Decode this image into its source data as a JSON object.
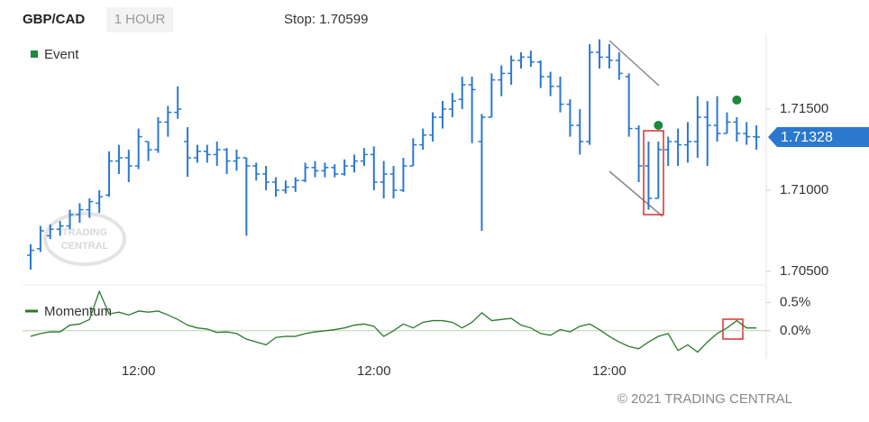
{
  "header": {
    "symbol": "GBP/CAD",
    "interval": "1 HOUR",
    "stop": "Stop: 1.70599"
  },
  "watermark": [
    "TRADING",
    "CENTRAL"
  ],
  "footer": "© 2021 TRADING CENTRAL",
  "chart_data": [
    {
      "type": "ohlc",
      "color": "#2b78cf",
      "categories": [
        null,
        null,
        null,
        null,
        null,
        null,
        null,
        null,
        null,
        null,
        null,
        "12:00",
        null,
        null,
        null,
        null,
        null,
        null,
        null,
        null,
        null,
        null,
        null,
        null,
        null,
        null,
        null,
        null,
        null,
        null,
        null,
        null,
        null,
        null,
        null,
        "12:00",
        null,
        null,
        null,
        null,
        null,
        null,
        null,
        null,
        null,
        null,
        null,
        null,
        null,
        null,
        null,
        null,
        null,
        null,
        null,
        null,
        null,
        null,
        null,
        "12:00",
        null,
        null,
        null,
        null,
        null,
        null,
        null,
        null,
        null,
        null,
        null,
        null,
        null,
        null,
        null
      ],
      "open": [
        1.706,
        1.7064,
        1.7072,
        1.7076,
        1.7078,
        1.7085,
        1.7088,
        1.7092,
        1.7097,
        1.7118,
        1.712,
        1.7115,
        1.713,
        1.7125,
        1.7142,
        1.7148,
        1.713,
        1.712,
        1.7124,
        1.7122,
        1.7125,
        1.7118,
        1.712,
        1.7115,
        1.711,
        1.7105,
        1.71,
        1.7102,
        1.7106,
        1.7114,
        1.7112,
        1.7114,
        1.711,
        1.7115,
        1.7118,
        1.7122,
        1.7105,
        1.711,
        1.71,
        1.7115,
        1.7128,
        1.7134,
        1.7145,
        1.715,
        1.7156,
        1.7165,
        1.713,
        1.7145,
        1.7168,
        1.7172,
        1.718,
        1.7182,
        1.7179,
        1.717,
        1.7164,
        1.7153,
        1.714,
        1.713,
        1.7185,
        1.7182,
        1.718,
        1.717,
        1.7138,
        1.7115,
        1.7095,
        1.7125,
        1.713,
        1.7128,
        1.713,
        1.7145,
        1.714,
        1.7135,
        1.7142,
        1.7135,
        1.7133
      ],
      "high": [
        1.70667,
        1.7078,
        1.7079,
        1.7081,
        1.7088,
        1.7092,
        1.7095,
        1.71,
        1.7124,
        1.7128,
        1.7125,
        1.7138,
        1.713,
        1.7145,
        1.7152,
        1.7164,
        1.71389,
        1.7128,
        1.7128,
        1.713,
        1.7126,
        1.7125,
        1.712,
        1.7117,
        1.7115,
        1.7108,
        1.7106,
        1.7108,
        1.7117,
        1.7118,
        1.7117,
        1.7116,
        1.7119,
        1.7122,
        1.7126,
        1.7127,
        1.7118,
        1.7115,
        1.712,
        1.7132,
        1.7138,
        1.7148,
        1.7155,
        1.716,
        1.717,
        1.717,
        1.7147,
        1.7172,
        1.7177,
        1.7183,
        1.7185,
        1.7186,
        1.718,
        1.7173,
        1.717,
        1.7156,
        1.715,
        1.719,
        1.7193,
        1.719,
        1.7185,
        1.7172,
        1.714,
        1.713,
        1.713,
        1.7133,
        1.7138,
        1.7142,
        1.7158,
        1.7155,
        1.7158,
        1.7148,
        1.7145,
        1.7142,
        1.714
      ],
      "low": [
        1.70511,
        1.7062,
        1.707,
        1.7072,
        1.7076,
        1.708,
        1.7083,
        1.7086,
        1.7096,
        1.711,
        1.7105,
        1.7113,
        1.7118,
        1.7123,
        1.7133,
        1.7144,
        1.71083,
        1.7117,
        1.7117,
        1.7115,
        1.711,
        1.7112,
        1.7072,
        1.7106,
        1.71,
        1.7096,
        1.7098,
        1.7099,
        1.7105,
        1.7108,
        1.7108,
        1.7108,
        1.7109,
        1.7111,
        1.7115,
        1.71,
        1.7095,
        1.7095,
        1.7099,
        1.7115,
        1.7125,
        1.713,
        1.7138,
        1.7145,
        1.715,
        1.7129,
        1.7075,
        1.7145,
        1.7158,
        1.7165,
        1.7175,
        1.7176,
        1.7163,
        1.7158,
        1.7148,
        1.7133,
        1.7122,
        1.7128,
        1.7175,
        1.7175,
        1.7168,
        1.7133,
        1.7105,
        1.7088,
        1.7095,
        1.7115,
        1.7115,
        1.7117,
        1.712,
        1.7115,
        1.713,
        1.7135,
        1.713,
        1.7128,
        1.7125
      ],
      "close": [
        1.7063,
        1.7075,
        1.7076,
        1.7078,
        1.7085,
        1.7088,
        1.7093,
        1.7096,
        1.7118,
        1.712,
        1.7115,
        1.7133,
        1.7125,
        1.7142,
        1.7148,
        1.715,
        1.712,
        1.7124,
        1.7122,
        1.7125,
        1.7118,
        1.712,
        1.7115,
        1.711,
        1.7105,
        1.71,
        1.7102,
        1.7106,
        1.7114,
        1.7112,
        1.7114,
        1.711,
        1.7115,
        1.7118,
        1.7122,
        1.7105,
        1.711,
        1.71,
        1.7115,
        1.7128,
        1.7134,
        1.7145,
        1.715,
        1.7155,
        1.7165,
        1.7162,
        1.7145,
        1.7168,
        1.7172,
        1.718,
        1.7182,
        1.7179,
        1.717,
        1.7164,
        1.7153,
        1.714,
        1.713,
        1.7185,
        1.7182,
        1.718,
        1.7172,
        1.7138,
        1.7115,
        1.7095,
        1.7125,
        1.713,
        1.7128,
        1.713,
        1.7145,
        1.714,
        1.7135,
        1.7142,
        1.7135,
        1.7133,
        1.71328
      ],
      "events": {
        "name": "Event",
        "color": "#1a8a3c",
        "x": [
          64,
          72
        ],
        "values": [
          1.714,
          1.71556
        ]
      },
      "last_price": 1.71328,
      "ylim": [
        1.7045,
        1.7195
      ],
      "yticks": [
        {
          "value": 1.705,
          "label": "1.70500"
        },
        {
          "value": 1.71,
          "label": "1.71000"
        },
        {
          "value": 1.715,
          "label": "1.71500"
        }
      ]
    },
    {
      "type": "line",
      "series": [
        {
          "name": "Momentum",
          "color": "#2a7a2a",
          "values": [
            -0.1,
            -0.05,
            -0.02,
            -0.02,
            0.1,
            0.12,
            0.2,
            0.7,
            0.3,
            0.33,
            0.28,
            0.35,
            0.33,
            0.35,
            0.28,
            0.2,
            0.1,
            0.05,
            0.03,
            -0.03,
            -0.02,
            -0.05,
            -0.15,
            -0.2,
            -0.25,
            -0.12,
            -0.1,
            -0.1,
            -0.05,
            -0.02,
            0,
            0.02,
            0.05,
            0.1,
            0.12,
            0.08,
            -0.1,
            0,
            0.12,
            0.05,
            0.15,
            0.18,
            0.18,
            0.15,
            0.05,
            0.15,
            0.32,
            0.18,
            0.2,
            0.22,
            0.1,
            0.05,
            -0.05,
            -0.08,
            0.02,
            -0.02,
            0.08,
            0.12,
            0.02,
            -0.1,
            -0.2,
            -0.28,
            -0.32,
            -0.2,
            -0.1,
            -0.05,
            -0.35,
            -0.25,
            -0.38,
            -0.2,
            -0.05,
            0.05,
            0.18,
            0.05,
            0.05
          ]
        }
      ],
      "ylim": [
        -0.5,
        0.75
      ],
      "yticks": [
        {
          "value": 0.5,
          "label": "0.5%"
        },
        {
          "value": 0,
          "label": "0.0%"
        }
      ]
    }
  ]
}
